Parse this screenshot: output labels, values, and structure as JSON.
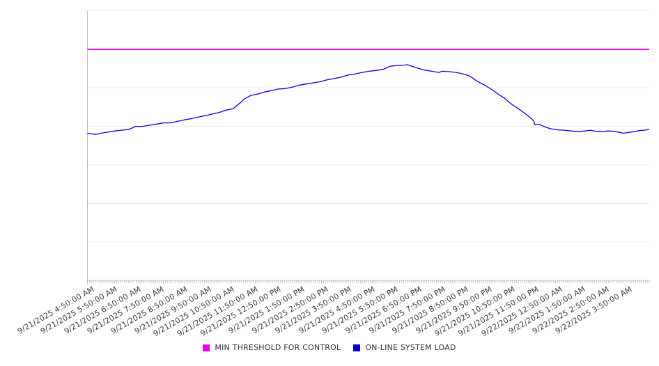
{
  "chart_data": {
    "type": "line",
    "title": "",
    "legend_position": "bottom-center",
    "x_axis": {
      "start": "9/21/2025 4:50:00 AM",
      "end": "9/22/2025 4:50:00 AM",
      "major_tick_interval": "1 hour",
      "minor_tick_interval": "5 minutes",
      "minor_tick_count": 288,
      "labels": [
        "9/21/2025 4:50:00 AM",
        "9/21/2025 5:50:00 AM",
        "9/21/2025 6:50:00 AM",
        "9/21/2025 7:50:00 AM",
        "9/21/2025 8:50:00 AM",
        "9/21/2025 9:50:00 AM",
        "9/21/2025 10:50:00 AM",
        "9/21/2025 11:50:00 AM",
        "9/21/2025 12:50:00 PM",
        "9/21/2025 1:50:00 PM",
        "9/21/2025 2:50:00 PM",
        "9/21/2025 3:50:00 PM",
        "9/21/2025 4:50:00 PM",
        "9/21/2025 5:50:00 PM",
        "9/21/2025 6:50:00 PM",
        "9/21/2025 7:50:00 PM",
        "9/21/2025 8:50:00 PM",
        "9/21/2025 9:50:00 PM",
        "9/21/2025 10:50:00 PM",
        "9/21/2025 11:50:00 PM",
        "9/22/2025 12:50:00 AM",
        "9/22/2025 1:50:00 AM",
        "9/22/2025 2:50:00 AM",
        "9/22/2025 3:50:00 AM"
      ]
    },
    "y_axis": {
      "labels_visible": false,
      "unit": "unlabeled (gridline units, 1.0 per gridline)",
      "ylim": [
        0,
        7
      ],
      "gridline_interval": 1,
      "grid": true
    },
    "series": [
      {
        "name": "MIN THRESHOLD FOR CONTROL",
        "type": "horizontal-threshold",
        "color": "#e800e8",
        "value": 6.0
      },
      {
        "name": "ON-LINE SYSTEM LOAD",
        "type": "line",
        "color": "#0000e0",
        "points_format": "[hours_after_start, value_in_gridline_units]",
        "points": [
          [
            0,
            3.82
          ],
          [
            0.16,
            3.81
          ],
          [
            0.34,
            3.79
          ],
          [
            0.57,
            3.82
          ],
          [
            0.87,
            3.85
          ],
          [
            1.17,
            3.88
          ],
          [
            1.47,
            3.9
          ],
          [
            1.77,
            3.92
          ],
          [
            2.06,
            4.0
          ],
          [
            2.36,
            4.0
          ],
          [
            2.66,
            4.03
          ],
          [
            2.96,
            4.06
          ],
          [
            3.25,
            4.09
          ],
          [
            3.55,
            4.09
          ],
          [
            3.85,
            4.13
          ],
          [
            4.15,
            4.17
          ],
          [
            4.44,
            4.2
          ],
          [
            4.74,
            4.24
          ],
          [
            5.04,
            4.28
          ],
          [
            5.34,
            4.32
          ],
          [
            5.63,
            4.36
          ],
          [
            5.93,
            4.42
          ],
          [
            6.23,
            4.46
          ],
          [
            6.38,
            4.54
          ],
          [
            6.53,
            4.61
          ],
          [
            6.68,
            4.7
          ],
          [
            6.97,
            4.8
          ],
          [
            7.27,
            4.84
          ],
          [
            7.57,
            4.89
          ],
          [
            7.87,
            4.93
          ],
          [
            8.16,
            4.97
          ],
          [
            8.46,
            4.98
          ],
          [
            8.76,
            5.02
          ],
          [
            9.06,
            5.07
          ],
          [
            9.35,
            5.1
          ],
          [
            9.65,
            5.13
          ],
          [
            9.95,
            5.16
          ],
          [
            10.25,
            5.21
          ],
          [
            10.54,
            5.24
          ],
          [
            10.84,
            5.28
          ],
          [
            11.14,
            5.33
          ],
          [
            11.44,
            5.36
          ],
          [
            11.74,
            5.4
          ],
          [
            12.03,
            5.43
          ],
          [
            12.33,
            5.45
          ],
          [
            12.63,
            5.48
          ],
          [
            12.93,
            5.56
          ],
          [
            13.22,
            5.58
          ],
          [
            13.52,
            5.59
          ],
          [
            13.67,
            5.6
          ],
          [
            13.82,
            5.57
          ],
          [
            14.12,
            5.51
          ],
          [
            14.41,
            5.46
          ],
          [
            14.71,
            5.43
          ],
          [
            15.01,
            5.4
          ],
          [
            15.16,
            5.43
          ],
          [
            15.46,
            5.42
          ],
          [
            15.75,
            5.4
          ],
          [
            16.05,
            5.36
          ],
          [
            16.35,
            5.3
          ],
          [
            16.65,
            5.17
          ],
          [
            16.94,
            5.08
          ],
          [
            17.24,
            4.97
          ],
          [
            17.54,
            4.84
          ],
          [
            17.84,
            4.72
          ],
          [
            18.13,
            4.57
          ],
          [
            18.43,
            4.45
          ],
          [
            18.73,
            4.32
          ],
          [
            18.94,
            4.21
          ],
          [
            19.06,
            4.14
          ],
          [
            19.12,
            4.04
          ],
          [
            19.32,
            4.05
          ],
          [
            19.53,
            3.99
          ],
          [
            19.77,
            3.94
          ],
          [
            20.07,
            3.91
          ],
          [
            20.37,
            3.9
          ],
          [
            20.66,
            3.88
          ],
          [
            20.96,
            3.86
          ],
          [
            21.26,
            3.88
          ],
          [
            21.49,
            3.9
          ],
          [
            21.71,
            3.87
          ],
          [
            22.0,
            3.87
          ],
          [
            22.3,
            3.88
          ],
          [
            22.6,
            3.86
          ],
          [
            22.9,
            3.82
          ],
          [
            23.1,
            3.84
          ],
          [
            23.34,
            3.86
          ],
          [
            23.58,
            3.89
          ],
          [
            23.79,
            3.9
          ],
          [
            24.0,
            3.92
          ]
        ]
      }
    ],
    "colors": {
      "gridline": "#ececec",
      "axis_line": "#c0c0c0",
      "minor_tick": "#b0b0b0",
      "tick_label": "#3d3d3d",
      "legend_text": "#333333",
      "background": "#ffffff"
    }
  },
  "legend": {
    "items": [
      {
        "label": "MIN THRESHOLD FOR CONTROL",
        "color": "#e800e8"
      },
      {
        "label": "ON-LINE SYSTEM LOAD",
        "color": "#0000e0"
      }
    ]
  }
}
